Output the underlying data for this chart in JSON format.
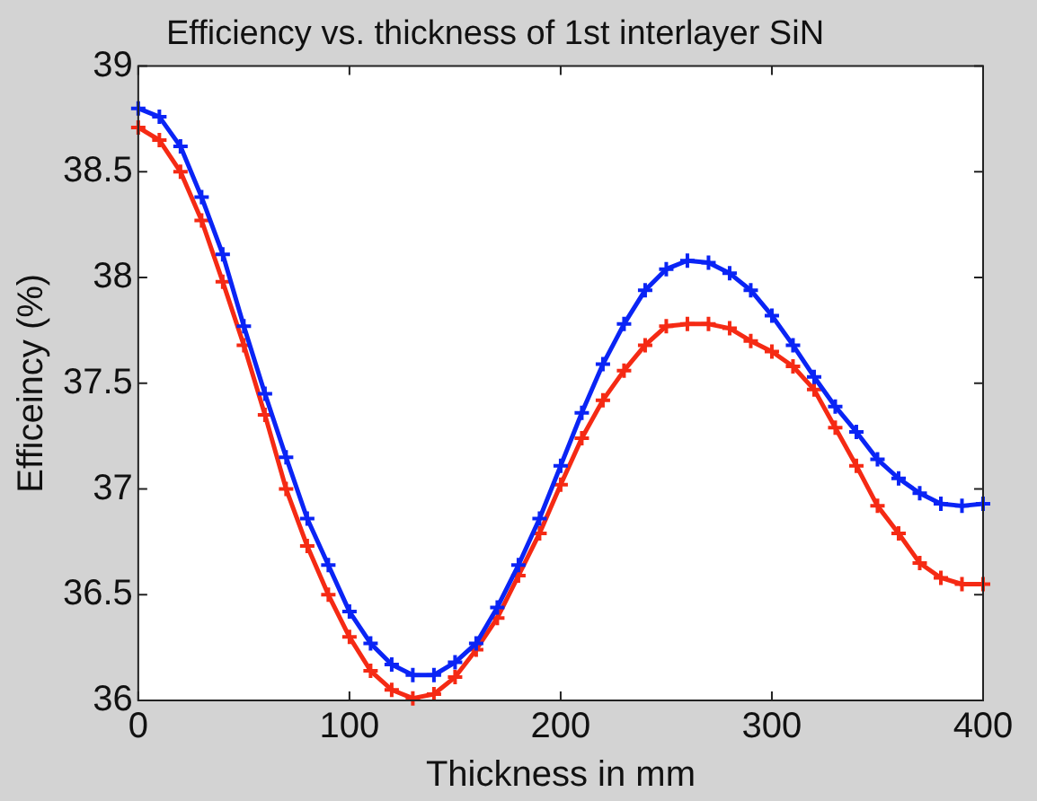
{
  "chart_data": {
    "type": "line",
    "title": "Efficiency vs. thickness of 1st interlayer SiN",
    "xlabel": "Thickness in mm",
    "ylabel": "Efficeincy (%)",
    "x": [
      0,
      10,
      20,
      30,
      40,
      50,
      60,
      70,
      80,
      90,
      100,
      110,
      120,
      130,
      140,
      150,
      160,
      170,
      180,
      190,
      200,
      210,
      220,
      230,
      240,
      250,
      260,
      270,
      280,
      290,
      300,
      310,
      320,
      330,
      340,
      350,
      360,
      370,
      380,
      390,
      400
    ],
    "series": [
      {
        "color": "#0a24f5",
        "values": [
          38.8,
          38.76,
          38.62,
          38.38,
          38.11,
          37.77,
          37.45,
          37.15,
          36.86,
          36.64,
          36.42,
          36.27,
          36.17,
          36.12,
          36.12,
          36.18,
          36.27,
          36.44,
          36.64,
          36.86,
          37.11,
          37.36,
          37.59,
          37.78,
          37.94,
          38.04,
          38.08,
          38.07,
          38.02,
          37.94,
          37.82,
          37.68,
          37.53,
          37.39,
          37.27,
          37.14,
          37.05,
          36.98,
          36.93,
          36.92,
          36.93
        ]
      },
      {
        "color": "#f52a14",
        "values": [
          38.71,
          38.65,
          38.5,
          38.27,
          37.98,
          37.68,
          37.35,
          37.0,
          36.73,
          36.5,
          36.3,
          36.14,
          36.05,
          36.01,
          36.03,
          36.11,
          36.24,
          36.39,
          36.59,
          36.79,
          37.02,
          37.24,
          37.42,
          37.56,
          37.68,
          37.77,
          37.78,
          37.78,
          37.76,
          37.7,
          37.65,
          37.58,
          37.47,
          37.29,
          37.11,
          36.92,
          36.79,
          36.65,
          36.58,
          36.55,
          36.55
        ]
      }
    ],
    "xlim": [
      0,
      400
    ],
    "xticks": [
      0,
      100,
      200,
      300,
      400
    ],
    "ylim": [
      36,
      39
    ],
    "yticks": [
      36,
      36.5,
      37,
      37.5,
      38,
      38.5,
      39
    ],
    "marker": "cross",
    "line_style": "solid",
    "grid": false,
    "legend": false
  }
}
